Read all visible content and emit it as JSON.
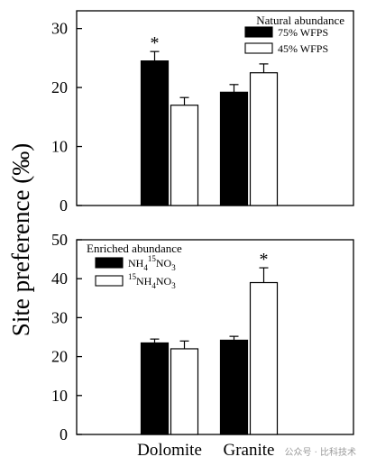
{
  "figure": {
    "ylabel": "Site preference (‰)",
    "watermark": "公众号 · 比科技术"
  },
  "chart_data": [
    {
      "type": "bar",
      "panel": "top",
      "legend_title": "Natural abundance",
      "legend_position": "top-right",
      "categories": [
        "Dolomite",
        "Granite"
      ],
      "series": [
        {
          "name": "75% WFPS",
          "fill": "#000000",
          "values": [
            24.5,
            19.2
          ],
          "errors": [
            1.6,
            1.3
          ]
        },
        {
          "name": "45% WFPS",
          "fill": "#ffffff",
          "values": [
            17.0,
            22.5
          ],
          "errors": [
            1.3,
            1.5
          ]
        }
      ],
      "ylim": [
        0,
        33
      ],
      "yticks": [
        0,
        10,
        20,
        30
      ],
      "annotations": [
        {
          "text": "*",
          "category": 0,
          "series": 0
        }
      ],
      "grid": false
    },
    {
      "type": "bar",
      "panel": "bottom",
      "legend_title": "Enriched abundance",
      "legend_position": "top-left",
      "categories": [
        "Dolomite",
        "Granite"
      ],
      "series": [
        {
          "name": "NH4 15NO3",
          "label_parts": [
            "NH",
            "4",
            "15",
            "NO",
            "3"
          ],
          "fill": "#000000",
          "values": [
            23.5,
            24.2
          ],
          "errors": [
            1.0,
            1.0
          ]
        },
        {
          "name": "15NH4NO3",
          "label_parts": [
            "15",
            "NH",
            "4",
            "NO",
            "3"
          ],
          "fill": "#ffffff",
          "values": [
            22.0,
            39.0
          ],
          "errors": [
            2.0,
            3.8
          ]
        }
      ],
      "ylim": [
        0,
        50
      ],
      "yticks": [
        0,
        10,
        20,
        30,
        40,
        50
      ],
      "annotations": [
        {
          "text": "*",
          "category": 1,
          "series": 1
        }
      ],
      "grid": false
    }
  ]
}
